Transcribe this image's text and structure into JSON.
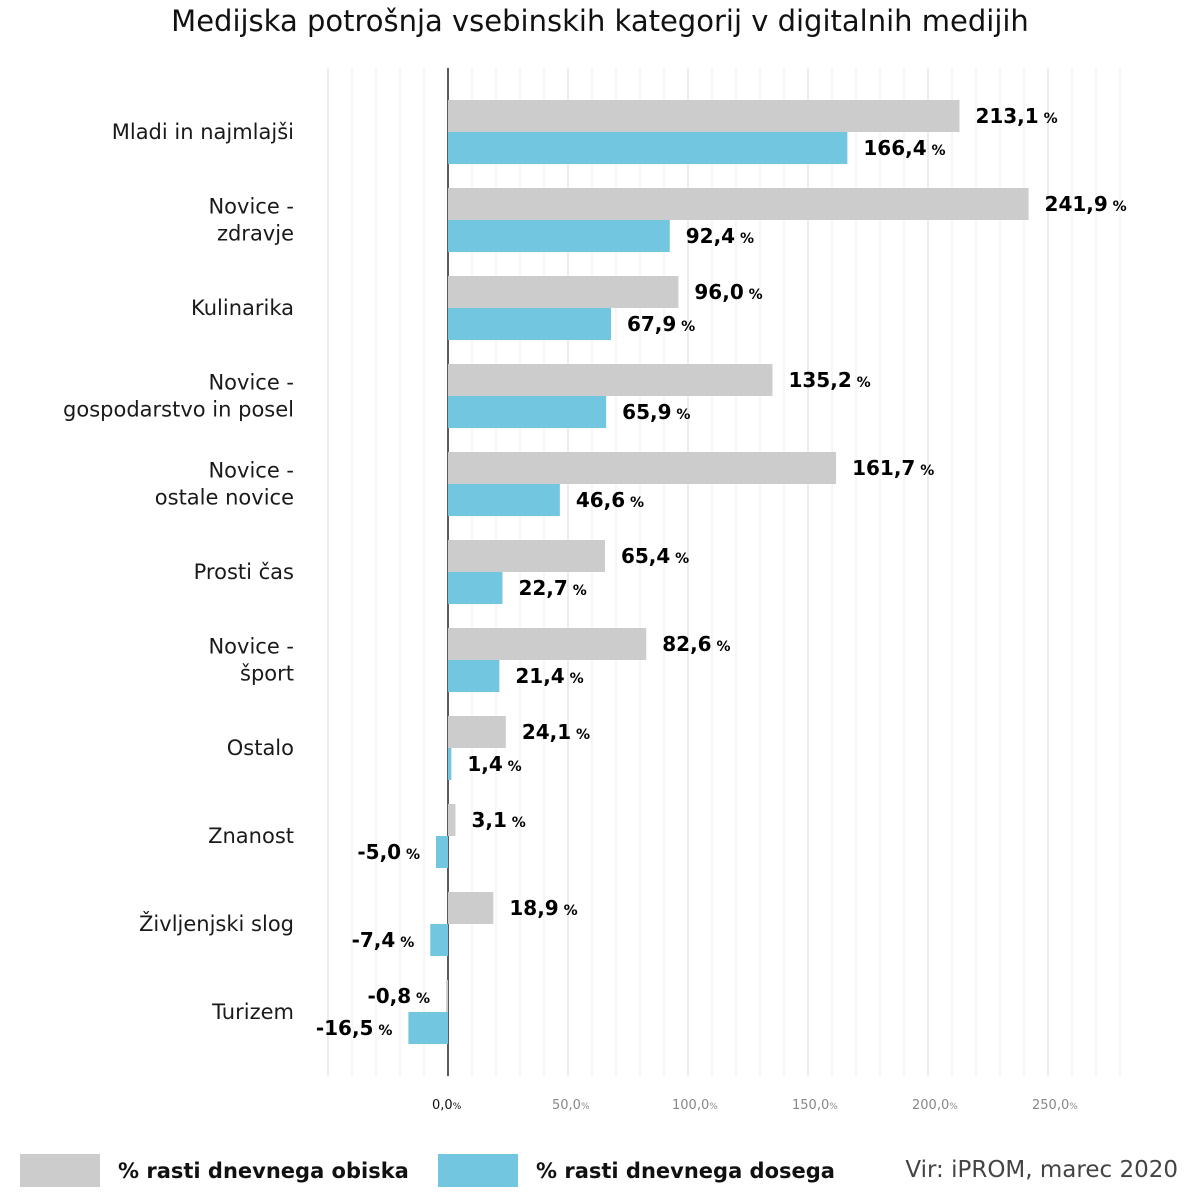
{
  "title": "Medijska potrošnja vsebinskih kategorij v digitalnih medijih",
  "source": "Vir: iPROM, marec 2020",
  "colors": {
    "visits": "#cccccc",
    "reach": "#72c6e0",
    "grid": "#ececec",
    "axis": "#222222"
  },
  "legend": [
    {
      "label": "% rasti dnevnega obiska",
      "color": "#cccccc"
    },
    {
      "label": "% rasti dnevnega dosega",
      "color": "#72c6e0"
    }
  ],
  "chart_data": {
    "type": "bar",
    "orientation": "horizontal",
    "title": "Medijska potrošnja vsebinskih kategorij v digitalnih medijih",
    "xlim": [
      -50,
      280
    ],
    "ticks": [
      {
        "value": 0,
        "label": "0,0"
      },
      {
        "value": 50,
        "label": "50,0"
      },
      {
        "value": 100,
        "label": "100,0"
      },
      {
        "value": 150,
        "label": "150,0"
      },
      {
        "value": 200,
        "label": "200,0"
      },
      {
        "value": 250,
        "label": "250,0"
      }
    ],
    "tick_unit": "%",
    "value_unit": "%",
    "categories": [
      [
        "Mladi in najmlajši"
      ],
      [
        "Novice -",
        "zdravje"
      ],
      [
        "Kulinarika"
      ],
      [
        "Novice -",
        "gospodarstvo in posel"
      ],
      [
        "Novice -",
        "ostale novice"
      ],
      [
        "Prosti čas"
      ],
      [
        "Novice -",
        "šport"
      ],
      [
        "Ostalo"
      ],
      [
        "Znanost"
      ],
      [
        "Življenjski slog"
      ],
      [
        "Turizem"
      ]
    ],
    "series": [
      {
        "name": "% rasti dnevnega obiska",
        "values": [
          213.1,
          241.9,
          96.0,
          135.2,
          161.7,
          65.4,
          82.6,
          24.1,
          3.1,
          18.9,
          -0.8
        ],
        "labels": [
          "213,1",
          "241,9",
          "96,0",
          "135,2",
          "161,7",
          "65,4",
          "82,6",
          "24,1",
          "3,1",
          "18,9",
          "-0,8"
        ]
      },
      {
        "name": "% rasti dnevnega dosega",
        "values": [
          166.4,
          92.4,
          67.9,
          65.9,
          46.6,
          22.7,
          21.4,
          1.4,
          -5.0,
          -7.4,
          -16.5
        ],
        "labels": [
          "166,4",
          "92,4",
          "67,9",
          "65,9",
          "46,6",
          "22,7",
          "21,4",
          "1,4",
          "-5,0",
          "-7,4",
          "-16,5"
        ]
      }
    ]
  }
}
